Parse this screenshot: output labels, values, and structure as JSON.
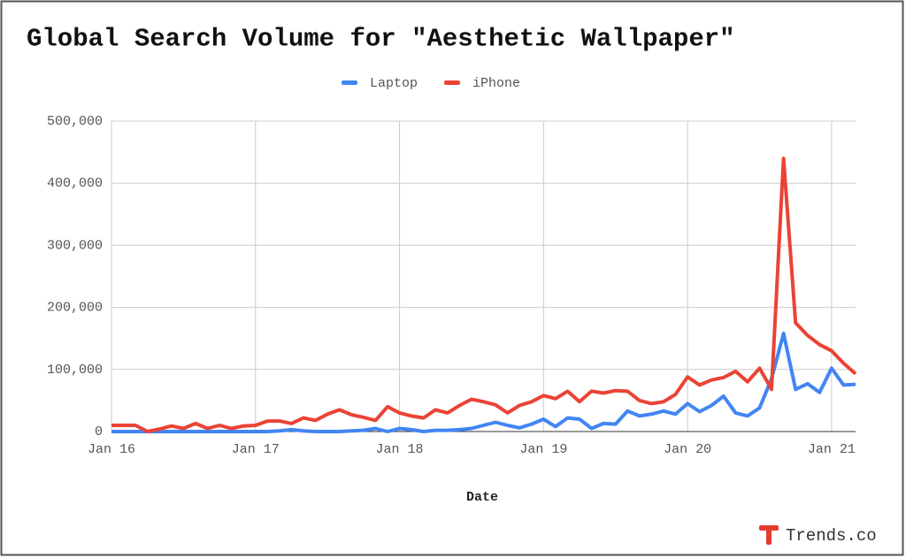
{
  "chart_data": {
    "type": "line",
    "title": "Global Search Volume for \"Aesthetic Wallpaper\"",
    "x_label": "Date",
    "categories": [
      "Jan 16",
      null,
      null,
      null,
      null,
      null,
      null,
      null,
      null,
      null,
      null,
      null,
      "Jan 17",
      null,
      null,
      null,
      null,
      null,
      null,
      null,
      null,
      null,
      null,
      null,
      "Jan 18",
      null,
      null,
      null,
      null,
      null,
      null,
      null,
      null,
      null,
      null,
      null,
      "Jan 19",
      null,
      null,
      null,
      null,
      null,
      null,
      null,
      null,
      null,
      null,
      null,
      "Jan 20",
      null,
      null,
      null,
      null,
      null,
      null,
      null,
      null,
      null,
      null,
      null,
      "Jan 21",
      null,
      null
    ],
    "series": [
      {
        "name": "Laptop",
        "color": "#4285f4",
        "values": [
          0,
          0,
          0,
          0,
          0,
          0,
          0,
          0,
          0,
          0,
          0,
          0,
          0,
          0,
          1000,
          3000,
          1000,
          0,
          0,
          0,
          1000,
          2000,
          5000,
          0,
          5000,
          3000,
          0,
          2000,
          2000,
          3000,
          5000,
          10000,
          15000,
          10000,
          6000,
          12000,
          20000,
          8000,
          22000,
          20000,
          5000,
          13000,
          12000,
          33000,
          25000,
          28000,
          33000,
          28000,
          45000,
          32000,
          42000,
          57000,
          30000,
          25000,
          38000,
          85000,
          158000,
          68000,
          77000,
          63000,
          102000,
          75000,
          76000
        ]
      },
      {
        "name": "iPhone",
        "color": "#ea4335",
        "values": [
          10000,
          10000,
          10000,
          0,
          4000,
          9000,
          5000,
          13000,
          5000,
          10000,
          5000,
          9000,
          10000,
          17000,
          17000,
          13000,
          22000,
          18000,
          28000,
          35000,
          27000,
          23000,
          18000,
          40000,
          30000,
          25000,
          22000,
          35000,
          30000,
          42000,
          52000,
          48000,
          43000,
          30000,
          42000,
          48000,
          58000,
          53000,
          65000,
          48000,
          65000,
          62000,
          66000,
          65000,
          50000,
          45000,
          48000,
          60000,
          88000,
          75000,
          83000,
          87000,
          97000,
          80000,
          102000,
          68000,
          440000,
          175000,
          155000,
          140000,
          130000,
          110000,
          93000
        ]
      }
    ],
    "ylim": [
      0,
      500000
    ],
    "yticks": [
      0,
      {
        "value": 100000,
        "label": "100,000"
      },
      {
        "value": 200000,
        "label": "200,000"
      },
      {
        "value": 300000,
        "label": "300,000"
      },
      {
        "value": 400000,
        "label": "400,000"
      },
      {
        "value": 500000,
        "label": "500,000"
      }
    ],
    "grid": true,
    "legend": "top"
  },
  "footer": "Trends.co"
}
